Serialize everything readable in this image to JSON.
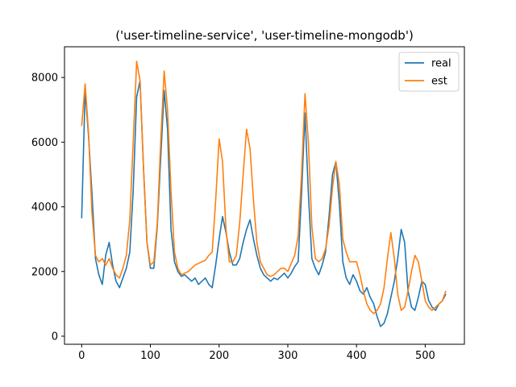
{
  "chart_data": {
    "type": "line",
    "title": "('user-timeline-service', 'user-timeline-mongodb')",
    "xlabel": "",
    "ylabel": "",
    "xlim": [
      -25,
      557
    ],
    "ylim": [
      -250,
      8950
    ],
    "xticks": [
      0,
      100,
      200,
      300,
      400,
      500
    ],
    "yticks": [
      0,
      2000,
      4000,
      6000,
      8000
    ],
    "grid": false,
    "legend_position": "top-right",
    "x": [
      0,
      5,
      10,
      15,
      20,
      25,
      30,
      35,
      40,
      45,
      50,
      55,
      60,
      65,
      70,
      75,
      80,
      85,
      90,
      95,
      100,
      105,
      110,
      115,
      120,
      125,
      130,
      135,
      140,
      145,
      150,
      155,
      160,
      165,
      170,
      175,
      180,
      185,
      190,
      195,
      200,
      205,
      210,
      215,
      220,
      225,
      230,
      235,
      240,
      245,
      250,
      255,
      260,
      265,
      270,
      275,
      280,
      285,
      290,
      295,
      300,
      305,
      310,
      315,
      320,
      325,
      330,
      335,
      340,
      345,
      350,
      355,
      360,
      365,
      370,
      375,
      380,
      385,
      390,
      395,
      400,
      405,
      410,
      415,
      420,
      425,
      430,
      435,
      440,
      445,
      450,
      455,
      460,
      465,
      470,
      475,
      480,
      485,
      490,
      495,
      500,
      505,
      510,
      515,
      520,
      525,
      530
    ],
    "series": [
      {
        "name": "real",
        "color": "#1f77b4",
        "values": [
          3650,
          7600,
          6200,
          4400,
          2400,
          1900,
          1600,
          2500,
          2900,
          2200,
          1700,
          1500,
          1800,
          2100,
          2600,
          4500,
          7400,
          7900,
          5200,
          2900,
          2100,
          2100,
          3400,
          5500,
          7600,
          6400,
          3300,
          2300,
          2000,
          1850,
          1900,
          1800,
          1700,
          1800,
          1600,
          1700,
          1800,
          1600,
          1500,
          2200,
          3000,
          3700,
          3200,
          2600,
          2200,
          2200,
          2400,
          2900,
          3300,
          3600,
          3000,
          2500,
          2100,
          1900,
          1800,
          1700,
          1800,
          1750,
          1850,
          1950,
          1800,
          1950,
          2150,
          2300,
          4400,
          6900,
          4400,
          2400,
          2100,
          1900,
          2200,
          2600,
          3700,
          5000,
          5400,
          4100,
          2300,
          1800,
          1600,
          1900,
          1700,
          1400,
          1300,
          1500,
          1200,
          1000,
          600,
          300,
          400,
          700,
          1200,
          1700,
          2400,
          3300,
          2900,
          1400,
          900,
          800,
          1200,
          1700,
          1600,
          1100,
          900,
          800,
          1000,
          1100,
          1300
        ]
      },
      {
        "name": "est",
        "color": "#ff7f0e",
        "values": [
          6500,
          7800,
          6300,
          3800,
          2500,
          2300,
          2400,
          2200,
          2400,
          2100,
          1900,
          1800,
          2100,
          2500,
          3600,
          6000,
          8500,
          7900,
          5200,
          2900,
          2200,
          2300,
          3500,
          6000,
          8200,
          7000,
          4500,
          2600,
          2100,
          1900,
          1950,
          2000,
          2100,
          2200,
          2250,
          2300,
          2350,
          2500,
          2600,
          4200,
          6100,
          5400,
          3300,
          2300,
          2300,
          2500,
          3500,
          5000,
          6400,
          5800,
          4200,
          2900,
          2300,
          2100,
          1900,
          1850,
          1900,
          2000,
          2100,
          2100,
          2000,
          2250,
          2500,
          3100,
          5000,
          7500,
          6000,
          3400,
          2400,
          2300,
          2400,
          2700,
          3400,
          4600,
          5400,
          4700,
          3000,
          2600,
          2300,
          2300,
          2300,
          1900,
          1400,
          1000,
          800,
          700,
          800,
          1000,
          1500,
          2400,
          3200,
          2400,
          1300,
          800,
          900,
          1400,
          2000,
          2500,
          2300,
          1700,
          1100,
          900,
          800,
          900,
          1000,
          1100,
          1400
        ]
      }
    ]
  }
}
